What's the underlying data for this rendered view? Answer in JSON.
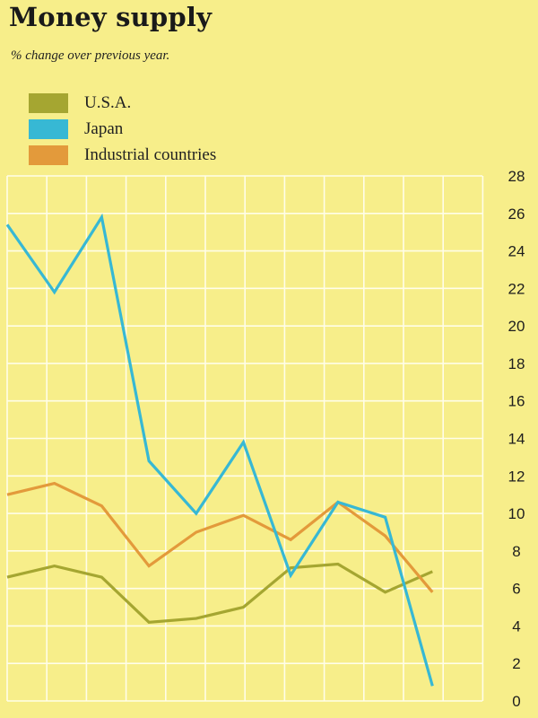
{
  "title": "Money supply",
  "subtitle": "% change over previous year.",
  "colors": {
    "background": "#f7ee8a",
    "grid": "#fffde8",
    "usa": "#a5a631",
    "japan": "#37b8d4",
    "industrial": "#e39a3b"
  },
  "chart_data": {
    "type": "line",
    "title": "Money supply",
    "subtitle": "% change over previous year.",
    "xlabel": "",
    "ylabel": "",
    "ylim": [
      0,
      28
    ],
    "y_ticks": [
      0,
      2,
      4,
      6,
      8,
      10,
      12,
      14,
      16,
      18,
      20,
      22,
      24,
      26,
      28
    ],
    "x": [
      0,
      1,
      2,
      3,
      4,
      5,
      6,
      7,
      8,
      9
    ],
    "grid": true,
    "y_axis_position": "right",
    "legend_position": "top-left",
    "series": [
      {
        "name": "U.S.A.",
        "color": "#a5a631",
        "values": [
          6.6,
          7.2,
          6.6,
          4.2,
          4.4,
          5.0,
          7.1,
          7.3,
          5.8,
          6.9
        ]
      },
      {
        "name": "Japan",
        "color": "#37b8d4",
        "values": [
          25.4,
          21.8,
          25.8,
          12.8,
          10.0,
          13.8,
          6.7,
          10.6,
          9.8,
          0.8
        ]
      },
      {
        "name": "Industrial countries",
        "color": "#e39a3b",
        "values": [
          11.0,
          11.6,
          10.4,
          7.2,
          9.0,
          9.9,
          8.6,
          10.6,
          8.8,
          5.8
        ]
      }
    ]
  }
}
